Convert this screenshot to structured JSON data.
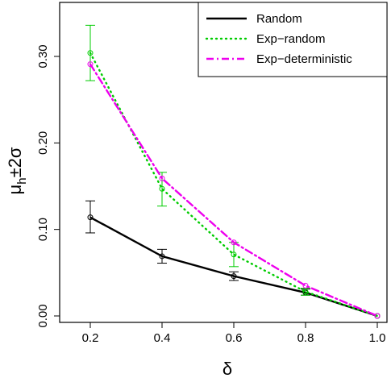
{
  "chart_data": {
    "type": "line",
    "xlabel": "δ",
    "ylabel": "μh ± 2σ",
    "ylabel_parts": {
      "mu": "μ",
      "sub": "h",
      "rest": "±2σ"
    },
    "xlim": [
      0.2,
      1.0
    ],
    "ylim": [
      0.0,
      0.33
    ],
    "x_ticks": [
      0.2,
      0.4,
      0.6,
      0.8,
      1.0
    ],
    "x_tick_labels": [
      "0.2",
      "0.4",
      "0.6",
      "0.8",
      "1.0"
    ],
    "y_ticks": [
      0.0,
      0.1,
      0.2,
      0.3
    ],
    "y_tick_labels": [
      "0.00",
      "0.10",
      "0.20",
      "0.30"
    ],
    "grid": false,
    "legend_position": "top-right",
    "series": [
      {
        "name": "Random",
        "color": "#000000",
        "dash": "solid",
        "x": [
          0.2,
          0.4,
          0.6,
          0.8,
          1.0
        ],
        "y": [
          0.114,
          0.069,
          0.046,
          0.027,
          0.0
        ],
        "err_low": [
          0.096,
          0.061,
          0.041,
          0.024,
          0.0
        ],
        "err_high": [
          0.133,
          0.077,
          0.051,
          0.031,
          0.0
        ]
      },
      {
        "name": "Exp−random",
        "color": "#00cc00",
        "dash": "dotted",
        "x": [
          0.2,
          0.4,
          0.6,
          0.8,
          1.0
        ],
        "y": [
          0.304,
          0.147,
          0.071,
          0.028,
          0.0
        ],
        "err_low": [
          0.272,
          0.127,
          0.057,
          0.024,
          0.0
        ],
        "err_high": [
          0.336,
          0.166,
          0.085,
          0.032,
          0.0
        ]
      },
      {
        "name": "Exp−deterministic",
        "color": "#ee00ee",
        "dash": "dashdot",
        "x": [
          0.2,
          0.4,
          0.6,
          0.8,
          1.0
        ],
        "y": [
          0.291,
          0.159,
          0.085,
          0.035,
          0.0
        ],
        "err_low": [
          0.291,
          0.159,
          0.085,
          0.035,
          0.0
        ],
        "err_high": [
          0.291,
          0.159,
          0.085,
          0.035,
          0.0
        ]
      }
    ]
  }
}
